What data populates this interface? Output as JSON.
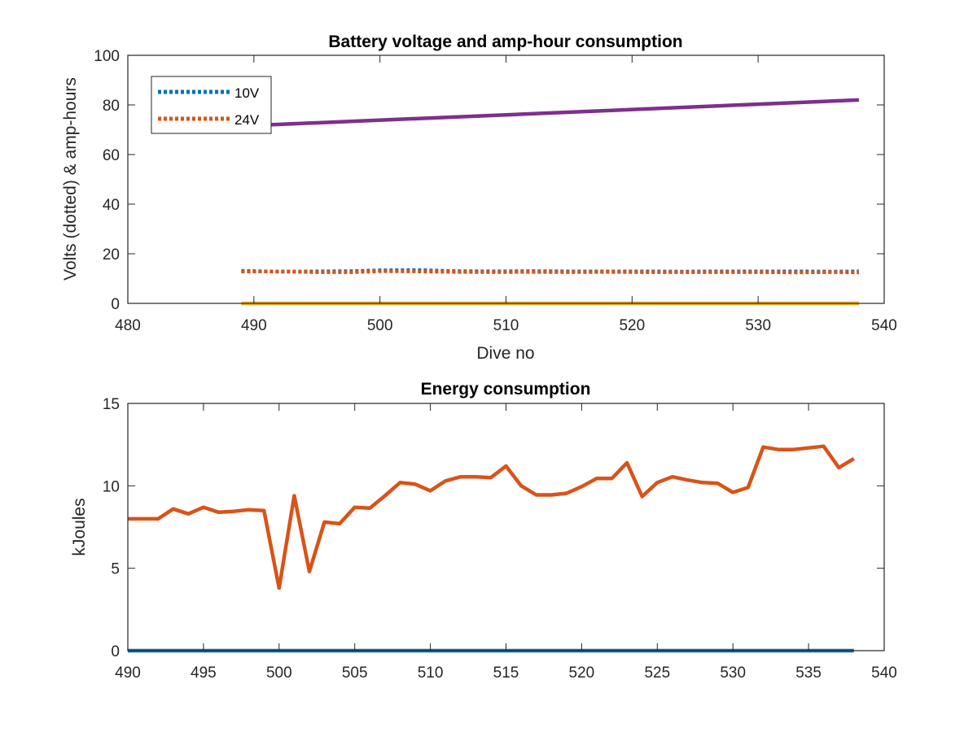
{
  "chart_data": [
    {
      "type": "line",
      "title": "Battery voltage and amp-hour consumption",
      "xlabel": "Dive no",
      "ylabel": "Volts (dotted) & amp-hours",
      "xlim": [
        480,
        540
      ],
      "ylim": [
        0,
        100
      ],
      "xticks": [
        "480",
        "490",
        "500",
        "510",
        "520",
        "530",
        "540"
      ],
      "yticks": [
        "0",
        "20",
        "40",
        "60",
        "80",
        "100"
      ],
      "legend_position": "top-left",
      "grid": false,
      "series": [
        {
          "name": "10V",
          "color": "#0072BD",
          "style": "dotted",
          "x": [
            489,
            492,
            495,
            498,
            500,
            503,
            506,
            509,
            512,
            515,
            518,
            521,
            524,
            527,
            530,
            533,
            536,
            538
          ],
          "y": [
            13.1,
            12.8,
            12.9,
            13.0,
            13.3,
            13.4,
            13.0,
            12.9,
            13.0,
            12.9,
            12.9,
            12.9,
            12.8,
            12.9,
            12.9,
            12.9,
            12.8,
            12.9
          ]
        },
        {
          "name": "24V",
          "color": "#D95319",
          "style": "dotted",
          "x": [
            489,
            492,
            495,
            498,
            500,
            503,
            506,
            509,
            512,
            515,
            518,
            521,
            524,
            527,
            530,
            533,
            536,
            538
          ],
          "y": [
            12.9,
            12.9,
            12.6,
            12.6,
            13.0,
            12.9,
            12.7,
            12.6,
            12.7,
            12.6,
            12.7,
            12.6,
            12.6,
            12.6,
            12.6,
            12.5,
            12.6,
            12.5
          ]
        },
        {
          "color": "#EDB120",
          "style": "solid",
          "x": [
            489,
            538
          ],
          "y": [
            0,
            0
          ]
        },
        {
          "color": "#7E2F8E",
          "style": "solid",
          "x": [
            489,
            538
          ],
          "y": [
            71.5,
            82.0
          ]
        }
      ]
    },
    {
      "type": "line",
      "title": "Energy consumption",
      "xlabel": "",
      "ylabel": "kJoules",
      "xlim": [
        490,
        540
      ],
      "ylim": [
        0,
        15
      ],
      "xticks": [
        "490",
        "495",
        "500",
        "505",
        "510",
        "515",
        "520",
        "525",
        "530",
        "535",
        "540"
      ],
      "yticks": [
        "0",
        "5",
        "10",
        "15"
      ],
      "grid": false,
      "series": [
        {
          "color": "#0072BD",
          "style": "solid",
          "x": [
            490,
            538
          ],
          "y": [
            0,
            0
          ]
        },
        {
          "color": "#D95319",
          "style": "solid",
          "x": [
            490,
            491,
            492,
            493,
            494,
            495,
            496,
            497,
            498,
            499,
            500,
            501,
            502,
            503,
            504,
            505,
            506,
            507,
            508,
            509,
            510,
            511,
            512,
            513,
            514,
            515,
            516,
            517,
            518,
            519,
            520,
            521,
            522,
            523,
            524,
            525,
            526,
            527,
            528,
            529,
            530,
            531,
            532,
            533,
            534,
            535,
            536,
            537,
            538
          ],
          "y": [
            8.0,
            8.0,
            8.0,
            8.6,
            8.3,
            8.7,
            8.4,
            8.45,
            8.55,
            8.5,
            3.8,
            9.4,
            4.8,
            7.8,
            7.7,
            8.7,
            8.65,
            9.4,
            10.2,
            10.1,
            9.7,
            10.3,
            10.55,
            10.55,
            10.5,
            11.2,
            10.0,
            9.45,
            9.45,
            9.55,
            9.95,
            10.45,
            10.45,
            11.4,
            9.35,
            10.2,
            10.55,
            10.35,
            10.2,
            10.15,
            9.6,
            9.9,
            12.35,
            12.2,
            12.2,
            12.3,
            12.4,
            11.1,
            11.65
          ]
        }
      ]
    }
  ]
}
